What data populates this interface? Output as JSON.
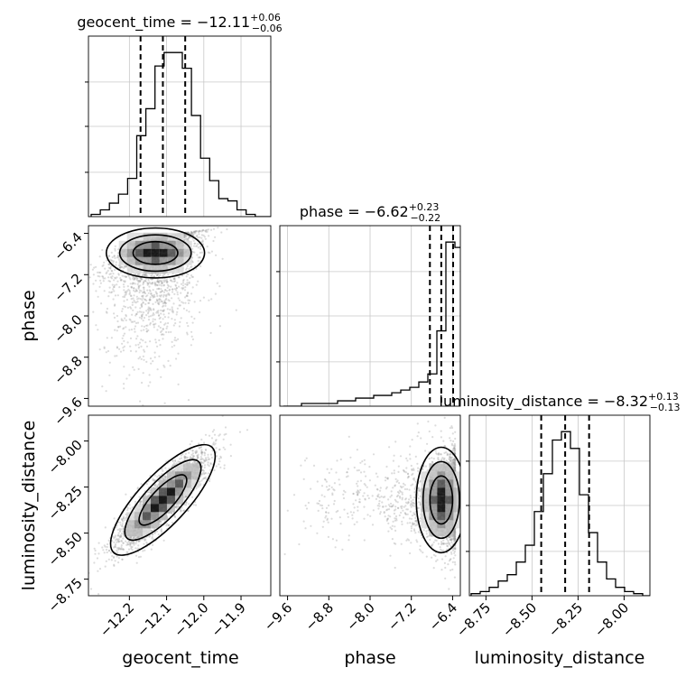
{
  "chart_data": {
    "type": "corner",
    "parameters": [
      {
        "name": "geocent_time",
        "label": "geocent_time",
        "title": {
          "prefix": "geocent_time = −12.11",
          "sup": "+0.06",
          "sub": "−0.06"
        },
        "range": [
          -12.31,
          -11.82
        ],
        "ticks": [
          -12.2,
          -12.1,
          -12.0,
          -11.9
        ],
        "tick_labels": [
          "−12.2",
          "−12.1",
          "−12.0",
          "−11.9"
        ],
        "quantiles": [
          -12.17,
          -12.11,
          -12.05
        ],
        "hist_edges_start": -12.31,
        "hist_bin_width": 0.0245,
        "hist_counts": [
          1,
          3,
          6,
          10,
          17,
          36,
          48,
          67,
          73,
          73,
          66,
          45,
          26,
          16,
          8,
          7,
          3,
          1,
          0,
          0
        ]
      },
      {
        "name": "phase",
        "label": "phase",
        "title": {
          "prefix": "phase = −6.62",
          "sup": "+0.23",
          "sub": "−0.22"
        },
        "range": [
          -9.75,
          -6.25
        ],
        "ticks": [
          -9.6,
          -8.8,
          -8.0,
          -7.2,
          -6.4
        ],
        "tick_labels": [
          "−9.6",
          "−8.8",
          "−8.0",
          "−7.2",
          "−6.4"
        ],
        "quantiles": [
          -6.84,
          -6.62,
          -6.39
        ],
        "hist_edges_start": -9.75,
        "hist_bin_width": 0.175,
        "hist_counts": [
          0,
          0,
          1,
          1,
          1,
          1,
          2,
          2,
          3,
          3,
          4,
          4,
          5,
          6,
          7,
          9,
          12,
          28,
          61,
          59
        ]
      },
      {
        "name": "luminosity_distance",
        "label": "luminosity_distance",
        "title": {
          "prefix": "luminosity_distance = −8.32",
          "sup": "+0.13",
          "sub": "−0.13"
        },
        "range": [
          -8.84,
          -7.86
        ],
        "ticks": [
          -8.75,
          -8.5,
          -8.25,
          -8.0
        ],
        "tick_labels": [
          "−8.75",
          "−8.50",
          "−8.25",
          "−8.00"
        ],
        "quantiles": [
          -8.45,
          -8.32,
          -8.19
        ],
        "hist_edges_start": -8.84,
        "hist_bin_width": 0.049,
        "hist_counts": [
          1,
          2,
          4,
          7,
          10,
          16,
          24,
          40,
          58,
          74,
          78,
          70,
          48,
          30,
          16,
          8,
          4,
          2,
          1,
          0
        ]
      }
    ],
    "pair_summaries": [
      {
        "x": "geocent_time",
        "y": "phase",
        "peak": [
          -12.13,
          -6.78
        ],
        "spread": [
          0.06,
          0.22
        ]
      },
      {
        "x": "geocent_time",
        "y": "luminosity_distance",
        "peak": [
          -12.11,
          -8.32
        ],
        "spread": [
          0.06,
          0.13
        ],
        "correlation": 0.85
      },
      {
        "x": "phase",
        "y": "luminosity_distance",
        "peak": [
          -6.62,
          -8.32
        ],
        "spread": [
          0.22,
          0.13
        ]
      }
    ],
    "grid": true,
    "colors": {
      "line": "#000000",
      "grid": "#c8c8c8",
      "scatter": "#9a9a9a",
      "density": [
        "#dcdcdc",
        "#bcbcbc",
        "#8c8c8c",
        "#4a4a4a",
        "#000000"
      ]
    }
  }
}
